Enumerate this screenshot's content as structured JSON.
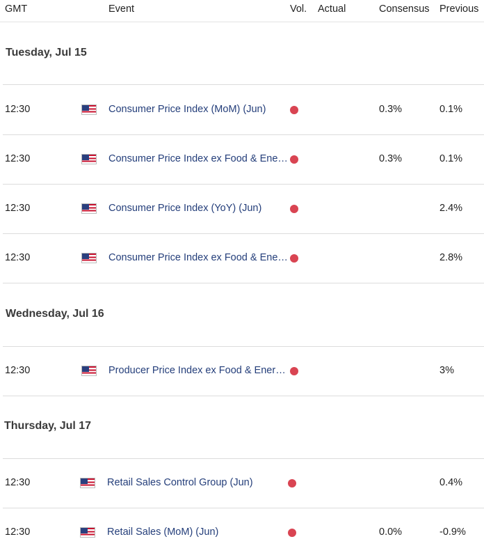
{
  "header": {
    "gmt": "GMT",
    "event": "Event",
    "vol": "Vol.",
    "actual": "Actual",
    "consensus": "Consensus",
    "previous": "Previous"
  },
  "colors": {
    "volatility_high": "#d94452",
    "event_text": "#243e7a"
  },
  "days": [
    {
      "label": "Tuesday, Jul 15"
    },
    {
      "label": "Wednesday, Jul 16"
    },
    {
      "label": "Thursday, Jul 17"
    }
  ],
  "events": [
    {
      "time": "12:30",
      "flag_icon": "us-flag-icon",
      "event": "Consumer Price Index (MoM) (Jun)",
      "volatility": "high",
      "actual": "",
      "consensus": "0.3%",
      "previous": "0.1%"
    },
    {
      "time": "12:30",
      "flag_icon": "us-flag-icon",
      "event": "Consumer Price Index ex Food & Energy (MoM) (Jun)",
      "volatility": "high",
      "actual": "",
      "consensus": "0.3%",
      "previous": "0.1%"
    },
    {
      "time": "12:30",
      "flag_icon": "us-flag-icon",
      "event": "Consumer Price Index (YoY) (Jun)",
      "volatility": "high",
      "actual": "",
      "consensus": "",
      "previous": "2.4%"
    },
    {
      "time": "12:30",
      "flag_icon": "us-flag-icon",
      "event": "Consumer Price Index ex Food & Energy (YoY) (Jun)",
      "volatility": "high",
      "actual": "",
      "consensus": "",
      "previous": "2.8%"
    },
    {
      "time": "12:30",
      "flag_icon": "us-flag-icon",
      "event": "Producer Price Index ex Food & Energy (MoM) (Jun)",
      "volatility": "high",
      "actual": "",
      "consensus": "",
      "previous": "3%"
    },
    {
      "time": "12:30",
      "flag_icon": "us-flag-icon",
      "event": "Retail Sales Control Group (Jun)",
      "volatility": "high",
      "actual": "",
      "consensus": "",
      "previous": "0.4%"
    },
    {
      "time": "12:30",
      "flag_icon": "us-flag-icon",
      "event": "Retail Sales (MoM) (Jun)",
      "volatility": "high",
      "actual": "",
      "consensus": "0.0%",
      "previous": "-0.9%"
    }
  ]
}
